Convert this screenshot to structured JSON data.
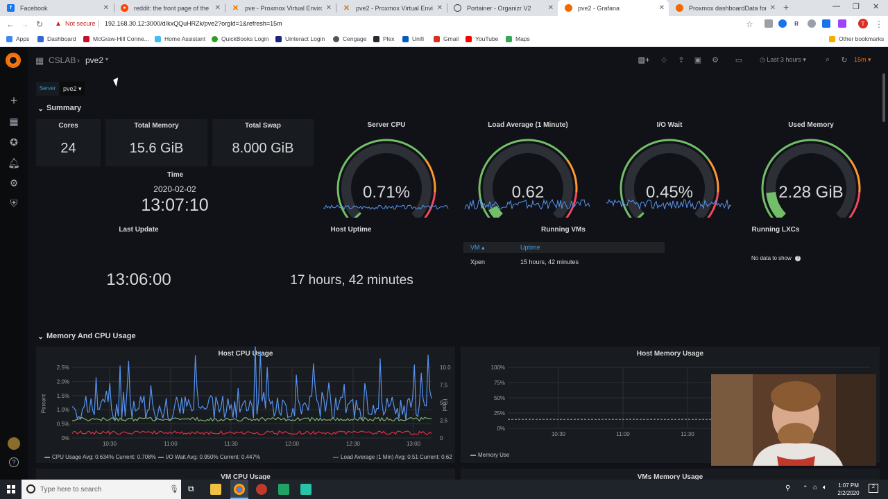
{
  "browser": {
    "tabs": [
      {
        "title": "Facebook",
        "favicon": "facebook-icon",
        "color": "#1877f2",
        "active": false
      },
      {
        "title": "reddit: the front page of the inte",
        "favicon": "reddit-icon",
        "color": "#ff4500",
        "active": false
      },
      {
        "title": "pve - Proxmox Virtual Environme",
        "favicon": "proxmox-icon",
        "color": "#e57000",
        "active": false
      },
      {
        "title": "pve2 - Proxmox Virtual Environm",
        "favicon": "proxmox-icon",
        "color": "#e57000",
        "active": false
      },
      {
        "title": "Portainer - Organizr V2",
        "favicon": "organizr-icon",
        "color": "#444444",
        "active": false
      },
      {
        "title": "pve2 - Grafana",
        "favicon": "grafana-icon",
        "color": "#f46800",
        "active": true
      },
      {
        "title": "Proxmox dashboardData for Gra",
        "favicon": "grafana-icon",
        "color": "#f46800",
        "active": false
      }
    ],
    "not_secure": "Not secure",
    "url": "192.168.30.12:3000/d/kxQQuHRZk/pve2?orgId=1&refresh=15m",
    "bookmarks": [
      {
        "label": "Apps",
        "icon": "apps-grid-icon",
        "color": "#4285f4"
      },
      {
        "label": "Dashboard",
        "icon": "dashboard-icon",
        "color": "#3367d6"
      },
      {
        "label": "McGraw-Hill Conne...",
        "icon": "mcgraw-hill-icon",
        "color": "#c8102e"
      },
      {
        "label": "Home Assistant",
        "icon": "home-assistant-icon",
        "color": "#41bdf5"
      },
      {
        "label": "QuickBooks Login",
        "icon": "quickbooks-icon",
        "color": "#2ca01c"
      },
      {
        "label": "Uinteract Login",
        "icon": "uinteract-icon",
        "color": "#1a237e"
      },
      {
        "label": "Cengage",
        "icon": "cengage-icon",
        "color": "#555555"
      },
      {
        "label": "Plex",
        "icon": "plex-icon",
        "color": "#282a2d"
      },
      {
        "label": "Unifi",
        "icon": "unifi-icon",
        "color": "#0559c9"
      },
      {
        "label": "Gmail",
        "icon": "gmail-icon",
        "color": "#d93025"
      },
      {
        "label": "YouTube",
        "icon": "youtube-icon",
        "color": "#ff0000"
      },
      {
        "label": "Maps",
        "icon": "maps-icon",
        "color": "#34a853"
      }
    ],
    "other_bookmarks": "Other bookmarks",
    "profile_initial": "T"
  },
  "header": {
    "folder": "CSLAB",
    "dashboard": "pve2",
    "time_range": "Last 3 hours",
    "refresh": "15m"
  },
  "variables": {
    "label": "Server",
    "value": "pve2"
  },
  "summary": {
    "row_title": "Summary",
    "cores": {
      "title": "Cores",
      "value": "24"
    },
    "total_memory": {
      "title": "Total Memory",
      "value": "15.6 GiB"
    },
    "total_swap": {
      "title": "Total Swap",
      "value": "8.000 GiB"
    },
    "time": {
      "title": "Time",
      "date": "2020-02-02",
      "clock": "13:07:10"
    },
    "last_update": {
      "title": "Last Update",
      "value": "13:06:00"
    },
    "host_uptime": {
      "title": "Host Uptime",
      "value": "17 hours, 42 minutes"
    },
    "running_vms": {
      "title": "Running VMs",
      "columns": [
        "VM ▴",
        "Uptime"
      ],
      "rows": [
        [
          "Xpen",
          "15 hours, 42 minutes"
        ]
      ]
    },
    "running_lxcs": {
      "title": "Running LXCs",
      "empty": "No data to show"
    },
    "gauges": [
      {
        "title": "Server CPU",
        "value": "0.71%",
        "fraction": 0.0071
      },
      {
        "title": "Load Average (1 Minute)",
        "value": "0.62",
        "fraction": 0.06
      },
      {
        "title": "I/O Wait",
        "value": "0.45%",
        "fraction": 0.0045
      },
      {
        "title": "Used Memory",
        "value": "2.28 GiB",
        "fraction": 0.146
      }
    ]
  },
  "memcpu": {
    "row_title": "Memory And CPU Usage",
    "cpu_panel_title": "Host CPU Usage",
    "cpu_y_left_label": "Percent",
    "cpu_y_right_label": "Load",
    "cpu_y_left_ticks": [
      "2.5%",
      "2.0%",
      "1.5%",
      "1.0%",
      "0.5%",
      "0%"
    ],
    "cpu_y_right_ticks": [
      "10.0",
      "7.5",
      "5.0",
      "2.5",
      "0"
    ],
    "cpu_x_ticks": [
      "10:30",
      "11:00",
      "11:30",
      "12:00",
      "12:30",
      "13:00"
    ],
    "cpu_legend": [
      {
        "text": "CPU Usage  Avg: 0.634%  Current: 0.708%",
        "color": "#7eb26d"
      },
      {
        "text": "I/O Wait  Avg: 0.950%  Current: 0.447%",
        "color": "#5794f2"
      },
      {
        "text": "Load Average (1 Min)  Avg: 0.51  Current: 0.62",
        "color": "#e02f44"
      }
    ],
    "mem_panel_title": "Host Memory Usage",
    "mem_y_ticks": [
      "100%",
      "75%",
      "50%",
      "25%",
      "0%"
    ],
    "mem_x_ticks": [
      "10:30",
      "11:00",
      "11:30"
    ],
    "mem_legend": [
      {
        "text": "Memory Use",
        "color": "#7eb26d"
      }
    ],
    "vm_cpu_title": "VM CPU Usage",
    "vm_mem_title": "VMs Memory Usage"
  },
  "taskbar": {
    "search_placeholder": "Type here to search",
    "time": "1:07 PM",
    "date": "2/2/2020"
  },
  "colors": {
    "grafana_orange": "#f46800",
    "gauge_green": "#73bf69",
    "gauge_orange": "#ff9830",
    "gauge_red": "#f2495c",
    "panel_bg": "#181b1f",
    "page_bg": "#111217",
    "link_blue": "#33a2e5"
  }
}
